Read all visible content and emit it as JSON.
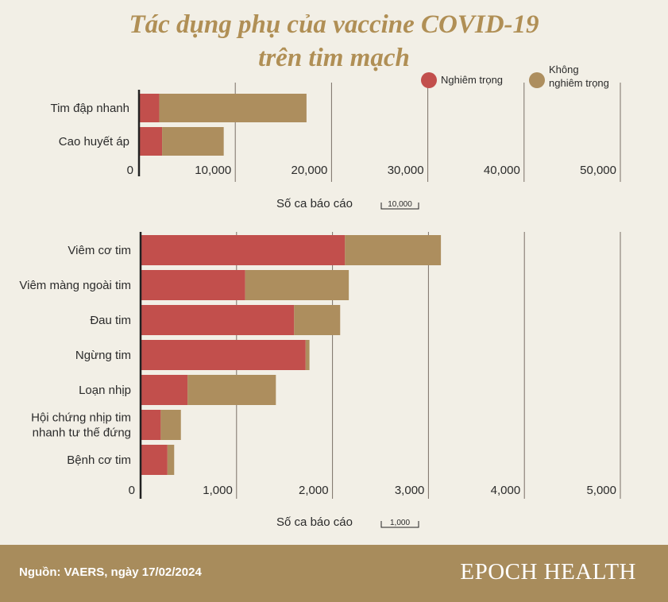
{
  "title_line1": "Tác dụng phụ của vaccine COVID-19",
  "title_line2": "trên tim mạch",
  "colors": {
    "serious": "#c24f4c",
    "non_serious": "#ad8e5e",
    "grid": "#7a6f66",
    "axis": "#222222",
    "text": "#2b2b2b",
    "background": "#f2efe6"
  },
  "legend": [
    {
      "label": "Nghiêm trọng",
      "color": "#c24f4c"
    },
    {
      "label": "Không\nnghiêm trọng",
      "color": "#ad8e5e"
    }
  ],
  "chart_data": [
    {
      "type": "bar",
      "orientation": "horizontal",
      "stacked": true,
      "categories": [
        "Tim đập nhanh",
        "Cao huyết áp"
      ],
      "series": [
        {
          "name": "Nghiêm trọng",
          "values": [
            2100,
            2400
          ]
        },
        {
          "name": "Không nghiêm trọng",
          "values": [
            15300,
            6400
          ]
        }
      ],
      "xlim": [
        0,
        50000
      ],
      "ticks": [
        0,
        10000,
        20000,
        30000,
        40000,
        50000
      ],
      "tick_labels": [
        "0",
        "10,000",
        "20,000",
        "30,000",
        "40,000",
        "50,000"
      ],
      "xlabel": "Số ca báo cáo",
      "scale_label": "10,000",
      "grid": true,
      "legend_position": "top-right"
    },
    {
      "type": "bar",
      "orientation": "horizontal",
      "stacked": true,
      "categories": [
        "Viêm cơ tim",
        "Viêm màng ngoài tim",
        "Đau tim",
        "Ngừng tim",
        "Loạn nhịp",
        "Hội chứng nhịp tim\nnhanh tư thế đứng",
        "Bệnh cơ tim"
      ],
      "series": [
        {
          "name": "Nghiêm trọng",
          "values": [
            2130,
            1090,
            1600,
            1720,
            490,
            210,
            280
          ]
        },
        {
          "name": "Không nghiêm trọng",
          "values": [
            1000,
            1080,
            480,
            40,
            920,
            210,
            70
          ]
        }
      ],
      "xlim": [
        0,
        5000
      ],
      "ticks": [
        0,
        1000,
        2000,
        3000,
        4000,
        5000
      ],
      "tick_labels": [
        "0",
        "1,000",
        "2,000",
        "3,000",
        "4,000",
        "5,000"
      ],
      "xlabel": "Số ca báo cáo",
      "scale_label": "1,000",
      "grid": true
    }
  ],
  "source": "Nguồn: VAERS, ngày 17/02/2024",
  "brand": "EPOCH HEALTH"
}
